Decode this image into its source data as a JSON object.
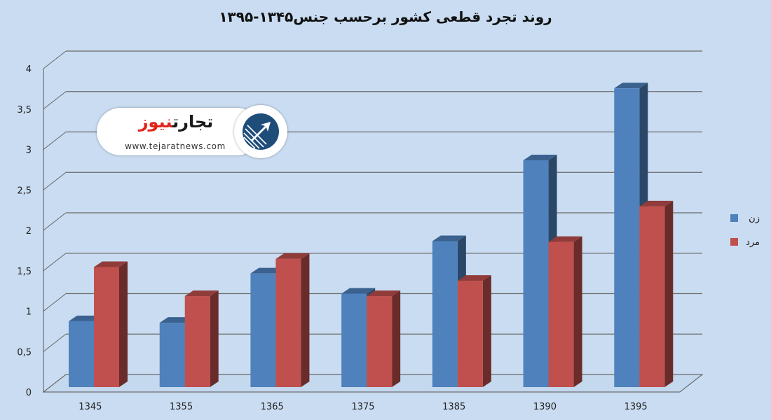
{
  "chart_data": {
    "type": "bar",
    "title": "روند تجرد قطعی کشور برحسب جنس۱۳۴۵-۱۳۹۵",
    "categories": [
      "1345",
      "1355",
      "1365",
      "1375",
      "1385",
      "1390",
      "1395"
    ],
    "series": [
      {
        "name": "زن",
        "color": "#4f81bd",
        "values": [
          0.85,
          0.83,
          1.44,
          1.19,
          1.84,
          2.84,
          3.73
        ]
      },
      {
        "name": "مرد",
        "color": "#c0504d",
        "values": [
          1.52,
          1.16,
          1.62,
          1.16,
          1.35,
          1.83,
          2.27
        ]
      }
    ],
    "y_ticks": [
      "0",
      "0,5",
      "1",
      "1,5",
      "2",
      "2,5",
      "3",
      "3,5",
      "4"
    ],
    "ylim": [
      0,
      4
    ],
    "grid": true,
    "legend_position": "right",
    "three_d": true
  },
  "watermark": {
    "brand_main": "تجارت",
    "brand_accent": "نیوز",
    "website": "www.tejaratnews.com",
    "icon": "arrow-emblem-icon"
  }
}
